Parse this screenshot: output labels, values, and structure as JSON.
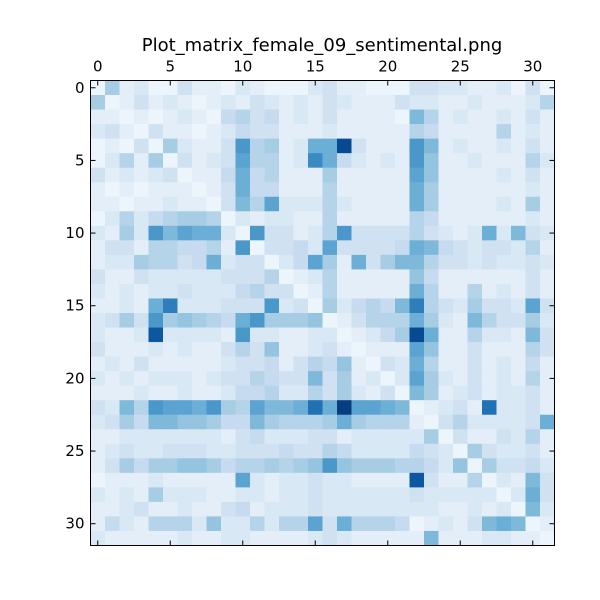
{
  "chart_data": {
    "type": "heatmap",
    "title": "Plot_matrix_female_09_sentimental.png",
    "colormap": "Blues",
    "x_ticks": [
      0,
      5,
      10,
      15,
      20,
      25,
      30
    ],
    "y_ticks": [
      0,
      5,
      10,
      15,
      20,
      25,
      30
    ],
    "x_tick_labels": [
      "0",
      "5",
      "10",
      "15",
      "20",
      "25",
      "30"
    ],
    "y_tick_labels": [
      "0",
      "5",
      "10",
      "15",
      "20",
      "25",
      "30"
    ],
    "x_axis_position": "top",
    "xlim": [
      -0.5,
      31.5
    ],
    "ylim": [
      31.5,
      -0.5
    ],
    "grid": false,
    "legend": "none",
    "value_range": [
      0,
      1
    ],
    "rows": [
      "0.05 0.35 0.1 0.15 0.05 0.05 0.2 0.1 0.1 0.05 0.15 0.1 0.05 0.05 0.05 0.15 0.2 0.1 0.1 0.05 0.05 0.05 0.2 0.2 0.15 0.15 0.1 0.1 0.15 0.05 0.2 0.05",
      "0.35 0.05 0.1 0.2 0.1 0.15 0.1 0.05 0.1 0.15 0.1 0.2 0.15 0.1 0.15 0.1 0.2 0.15 0.1 0.1 0.1 0.2 0.15 0.15 0.1 0.1 0.15 0.1 0.1 0.1 0.15 0.3",
      "0.1 0.1 0.05 0.1 0.05 0.1 0.15 0.1 0.05 0.25 0.3 0.2 0.25 0.1 0.15 0.1 0.2 0.1 0.1 0.1 0.1 0.05 0.45 0.3 0.1 0.15 0.1 0.1 0.15 0.1 0.2 0.1",
      "0.15 0.2 0.1 0.05 0.2 0.1 0.1 0.05 0.1 0.15 0.25 0.2 0.2 0.1 0.1 0.1 0.15 0.1 0.1 0.1 0.1 0.1 0.3 0.25 0.1 0.1 0.1 0.1 0.3 0.1 0.15 0.1",
      "0.05 0.1 0.05 0.2 0.05 0.35 0.15 0.1 0.1 0.2 0.6 0.3 0.35 0.1 0.15 0.5 0.5 0.9 0.2 0.1 0.1 0.1 0.6 0.45 0.1 0.15 0.1 0.1 0.15 0.1 0.2 0.1",
      "0.05 0.15 0.3 0.1 0.35 0.05 0.2 0.1 0.15 0.2 0.55 0.3 0.3 0.1 0.15 0.65 0.5 0.25 0.15 0.1 0.15 0.1 0.6 0.4 0.1 0.1 0.15 0.1 0.1 0.1 0.3 0.15",
      "0.2 0.1 0.15 0.1 0.15 0.2 0.05 0.1 0.1 0.25 0.5 0.25 0.3 0.1 0.1 0.1 0.35 0.1 0.1 0.1 0.1 0.1 0.55 0.4 0.1 0.1 0.1 0.1 0.15 0.1 0.2 0.1",
      "0.1 0.05 0.1 0.05 0.1 0.1 0.1 0.05 0.1 0.2 0.5 0.25 0.25 0.1 0.1 0.1 0.3 0.1 0.1 0.1 0.1 0.1 0.5 0.35 0.1 0.1 0.1 0.1 0.1 0.1 0.15 0.1",
      "0.1 0.1 0.05 0.1 0.1 0.15 0.1 0.1 0.05 0.2 0.45 0.3 0.55 0.15 0.15 0.15 0.3 0.15 0.1 0.1 0.1 0.1 0.5 0.35 0.1 0.1 0.1 0.1 0.15 0.1 0.35 0.1",
      "0.05 0.15 0.3 0.15 0.25 0.3 0.35 0.35 0.3 0.05 0.15 0.1 0.15 0.15 0.1 0.1 0.3 0.1 0.1 0.1 0.1 0.1 0.3 0.25 0.1 0.1 0.1 0.1 0.1 0.1 0.15 0.1",
      "0.15 0.1 0.35 0.15 0.6 0.45 0.55 0.5 0.5 0.15 0.05 0.6 0.2 0.2 0.1 0.15 0.3 0.6 0.2 0.2 0.2 0.2 0.3 0.2 0.15 0.1 0.15 0.5 0.15 0.45 0.2 0.15",
      "0.1 0.2 0.2 0.1 0.3 0.3 0.25 0.25 0.3 0.1 0.6 0.05 0.2 0.2 0.25 0.15 0.55 0.2 0.2 0.2 0.2 0.25 0.5 0.45 0.25 0.2 0.15 0.2 0.2 0.15 0.3 0.1",
      "0.1 0.15 0.15 0.35 0.3 0.3 0.2 0.25 0.5 0.15 0.2 0.2 0.05 0.15 0.25 0.55 0.35 0.1 0.5 0.2 0.35 0.45 0.45 0.3 0.2 0.2 0.15 0.2 0.15 0.15 0.2 0.15",
      "0.2 0.1 0.1 0.2 0.15 0.15 0.15 0.15 0.15 0.2 0.2 0.2 0.3 0.05 0.1 0.15 0.3 0.1 0.1 0.1 0.1 0.1 0.4 0.25 0.1 0.1 0.1 0.1 0.1 0.1 0.2 0.1",
      "0.15 0.1 0.15 0.1 0.15 0.15 0.2 0.15 0.15 0.15 0.25 0.3 0.2 0.2 0.05 0.1 0.3 0.1 0.1 0.1 0.1 0.1 0.5 0.3 0.1 0.1 0.3 0.1 0.15 0.1 0.2 0.1",
      "0.1 0.1 0.15 0.1 0.5 0.7 0.15 0.15 0.15 0.2 0.2 0.2 0.6 0.15 0.2 0.05 0.35 0.15 0.25 0.3 0.25 0.45 0.7 0.3 0.2 0.15 0.35 0.2 0.2 0.15 0.55 0.2",
      "0.15 0.2 0.35 0.2 0.6 0.35 0.4 0.35 0.3 0.25 0.5 0.6 0.35 0.35 0.35 0.4 0.05 0.1 0.2 0.3 0.3 0.3 0.5 0.35 0.15 0.1 0.45 0.3 0.2 0.2 0.35 0.15",
      "0.15 0.1 0.1 0.15 0.85 0.15 0.15 0.15 0.15 0.1 0.6 0.15 0.15 0.1 0.1 0.15 0.15 0.05 0.1 0.15 0.25 0.35 0.9 0.5 0.1 0.1 0.3 0.15 0.15 0.1 0.45 0.2",
      "0.2 0.1 0.1 0.1 0.15 0.1 0.15 0.1 0.1 0.2 0.3 0.2 0.4 0.1 0.1 0.15 0.2 0.1 0.05 0.1 0.1 0.1 0.55 0.4 0.1 0.1 0.2 0.1 0.1 0.1 0.3 0.2",
      "0.1 0.15 0.1 0.2 0.1 0.1 0.1 0.1 0.1 0.15 0.2 0.2 0.25 0.1 0.2 0.3 0.25 0.4 0.1 0.05 0.2 0.15 0.5 0.3 0.1 0.1 0.2 0.1 0.15 0.1 0.25 0.1",
      "0.15 0.1 0.15 0.1 0.15 0.15 0.15 0.1 0.15 0.2 0.2 0.3 0.25 0.2 0.2 0.45 0.2 0.35 0.1 0.15 0.05 0.15 0.55 0.35 0.15 0.1 0.2 0.1 0.15 0.1 0.3 0.1",
      "0.1 0.1 0.1 0.15 0.1 0.1 0.15 0.1 0.1 0.15 0.25 0.25 0.3 0.15 0.15 0.3 0.2 0.35 0.15 0.1 0.2 0.05 0.45 0.35 0.1 0.15 0.2 0.1 0.15 0.15 0.2 0.1",
      "0.2 0.15 0.45 0.3 0.6 0.55 0.55 0.5 0.6 0.35 0.3 0.55 0.45 0.45 0.5 0.75 0.5 0.95 0.55 0.55 0.5 0.45 0.05 0.1 0.15 0.2 0.1 0.75 0.15 0.15 0.2 0.1",
      "0.15 0.2 0.35 0.25 0.45 0.45 0.4 0.4 0.35 0.25 0.25 0.45 0.35 0.3 0.3 0.3 0.35 0.5 0.35 0.3 0.3 0.3 0.1 0.05 0.2 0.3 0.15 0.15 0.15 0.15 0.2 0.5",
      "0.1 0.1 0.15 0.15 0.15 0.15 0.15 0.15 0.15 0.1 0.2 0.25 0.15 0.15 0.15 0.2 0.2 0.1 0.15 0.15 0.15 0.15 0.15 0.35 0.05 0.2 0.1 0.1 0.2 0.15 0.3 0.1",
      "0.1 0.15 0.2 0.15 0.15 0.2 0.2 0.2 0.15 0.15 0.2 0.2 0.2 0.25 0.2 0.2 0.3 0.25 0.15 0.15 0.15 0.15 0.25 0.2 0.15 0.05 0.35 0.2 0.15 0.15 0.2 0.1",
      "0.1 0.2 0.35 0.25 0.35 0.35 0.4 0.4 0.35 0.25 0.3 0.3 0.35 0.3 0.35 0.4 0.6 0.4 0.35 0.35 0.35 0.3 0.3 0.25 0.15 0.4 0.05 0.35 0.2 0.2 0.25 0.15",
      "0.05 0.1 0.1 0.1 0.15 0.1 0.1 0.1 0.1 0.1 0.55 0.15 0.1 0.15 0.15 0.2 0.15 0.15 0.1 0.1 0.1 0.1 0.85 0.2 0.1 0.1 0.3 0.05 0.15 0.1 0.45 0.2",
      "0.15 0.1 0.15 0.1 0.35 0.15 0.15 0.15 0.1 0.1 0.15 0.15 0.1 0.15 0.15 0.2 0.15 0.15 0.15 0.15 0.15 0.15 0.2 0.15 0.15 0.15 0.15 0.15 0.05 0.15 0.5 0.2",
      "0.1 0.1 0.15 0.2 0.1 0.1 0.15 0.1 0.1 0.2 0.25 0.1 0.15 0.15 0.15 0.2 0.15 0.15 0.15 0.15 0.15 0.15 0.15 0.15 0.1 0.1 0.15 0.1 0.15 0.05 0.45 0.15",
      "0.1 0.25 0.15 0.1 0.3 0.3 0.3 0.15 0.4 0.15 0.15 0.3 0.15 0.3 0.3 0.55 0.2 0.5 0.3 0.3 0.3 0.25 0.05 0.1 0.15 0.1 0.2 0.45 0.5 0.45 0.05 0.1",
      "0.15 0.1 0.1 0.1 0.1 0.1 0.15 0.1 0.1 0.15 0.15 0.1 0.1 0.1 0.1 0.15 0.2 0.15 0.1 0.1 0.1 0.1 0.1 0.45 0.1 0.1 0.1 0.15 0.15 0.1 0.1 0.05"
    ]
  }
}
